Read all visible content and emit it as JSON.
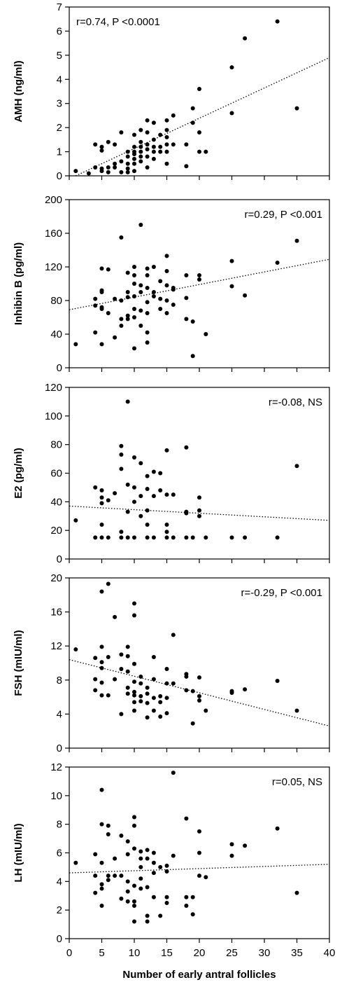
{
  "chart_data": [
    {
      "type": "scatter",
      "ylabel": "AMH (ng/ml)",
      "ylim": [
        0,
        7
      ],
      "yticks": [
        0,
        1,
        2,
        3,
        4,
        5,
        6,
        7
      ],
      "annotation": "r=0.74, P <0.0001",
      "annotation_position": "top-left",
      "trend": [
        [
          1,
          0
        ],
        [
          40,
          4.9
        ]
      ],
      "points": [
        [
          1,
          0.2
        ],
        [
          3,
          0.1
        ],
        [
          4,
          0.35
        ],
        [
          4,
          1.3
        ],
        [
          5,
          1.2
        ],
        [
          5,
          1.05
        ],
        [
          5,
          0.3
        ],
        [
          5,
          0.2
        ],
        [
          6,
          1.4
        ],
        [
          6,
          0.35
        ],
        [
          6,
          0.15
        ],
        [
          7,
          0.5
        ],
        [
          7,
          0.35
        ],
        [
          7,
          1.3
        ],
        [
          8,
          1.8
        ],
        [
          8,
          0.6
        ],
        [
          8,
          0.15
        ],
        [
          9,
          1.0
        ],
        [
          9,
          0.8
        ],
        [
          9,
          0.5
        ],
        [
          9,
          0.3
        ],
        [
          9,
          0.15
        ],
        [
          10,
          1.7
        ],
        [
          10,
          1.2
        ],
        [
          10,
          1.0
        ],
        [
          10,
          0.9
        ],
        [
          10,
          0.7
        ],
        [
          10,
          0.5
        ],
        [
          10,
          0.2
        ],
        [
          11,
          1.9
        ],
        [
          11,
          1.4
        ],
        [
          11,
          1.2
        ],
        [
          11,
          1.0
        ],
        [
          11,
          0.8
        ],
        [
          11,
          0.6
        ],
        [
          12,
          2.3
        ],
        [
          12,
          1.8
        ],
        [
          12,
          1.3
        ],
        [
          12,
          1.1
        ],
        [
          12,
          0.8
        ],
        [
          12,
          0.35
        ],
        [
          13,
          2.2
        ],
        [
          13,
          1.5
        ],
        [
          13,
          1.2
        ],
        [
          13,
          1.0
        ],
        [
          13,
          0.7
        ],
        [
          14,
          1.7
        ],
        [
          14,
          1.2
        ],
        [
          14,
          1.0
        ],
        [
          15,
          2.3
        ],
        [
          15,
          1.9
        ],
        [
          15,
          1.6
        ],
        [
          15,
          1.3
        ],
        [
          15,
          1.0
        ],
        [
          15,
          0.5
        ],
        [
          16,
          2.5
        ],
        [
          16,
          1.3
        ],
        [
          18,
          1.3
        ],
        [
          18,
          0.4
        ],
        [
          19,
          2.8
        ],
        [
          19,
          2.2
        ],
        [
          20,
          3.6
        ],
        [
          20,
          1.8
        ],
        [
          20,
          1.0
        ],
        [
          21,
          1.0
        ],
        [
          25,
          4.5
        ],
        [
          25,
          2.6
        ],
        [
          27,
          5.7
        ],
        [
          32,
          6.4
        ],
        [
          35,
          2.8
        ]
      ]
    },
    {
      "type": "scatter",
      "ylabel": "Inhibin B (pg/ml)",
      "ylim": [
        0,
        200
      ],
      "yticks": [
        0,
        40,
        80,
        120,
        160,
        200
      ],
      "annotation": "r=0.29, P <0.001",
      "annotation_position": "top-right",
      "trend": [
        [
          0,
          69
        ],
        [
          40,
          129
        ]
      ],
      "points": [
        [
          1,
          28
        ],
        [
          4,
          74
        ],
        [
          4,
          82
        ],
        [
          4,
          42
        ],
        [
          5,
          118
        ],
        [
          5,
          92
        ],
        [
          5,
          90
        ],
        [
          5,
          72
        ],
        [
          5,
          70
        ],
        [
          5,
          28
        ],
        [
          6,
          117
        ],
        [
          6,
          65
        ],
        [
          7,
          82
        ],
        [
          7,
          36
        ],
        [
          8,
          155
        ],
        [
          8,
          58
        ],
        [
          8,
          50
        ],
        [
          8,
          80
        ],
        [
          9,
          113
        ],
        [
          9,
          90
        ],
        [
          9,
          84
        ],
        [
          9,
          62
        ],
        [
          9,
          58
        ],
        [
          10,
          120
        ],
        [
          10,
          110
        ],
        [
          10,
          100
        ],
        [
          10,
          85
        ],
        [
          10,
          70
        ],
        [
          10,
          60
        ],
        [
          10,
          23
        ],
        [
          11,
          170
        ],
        [
          11,
          98
        ],
        [
          11,
          90
        ],
        [
          11,
          68
        ],
        [
          11,
          50
        ],
        [
          12,
          118
        ],
        [
          12,
          110
        ],
        [
          12,
          95
        ],
        [
          12,
          78
        ],
        [
          12,
          65
        ],
        [
          12,
          42
        ],
        [
          12,
          30
        ],
        [
          13,
          120
        ],
        [
          13,
          90
        ],
        [
          13,
          85
        ],
        [
          14,
          103
        ],
        [
          14,
          70
        ],
        [
          14,
          82
        ],
        [
          15,
          133
        ],
        [
          15,
          115
        ],
        [
          15,
          98
        ],
        [
          15,
          80
        ],
        [
          15,
          65
        ],
        [
          16,
          95
        ],
        [
          16,
          75
        ],
        [
          16,
          93
        ],
        [
          18,
          110
        ],
        [
          18,
          83
        ],
        [
          18,
          58
        ],
        [
          19,
          55
        ],
        [
          19,
          14
        ],
        [
          20,
          110
        ],
        [
          20,
          105
        ],
        [
          21,
          40
        ],
        [
          25,
          127
        ],
        [
          25,
          97
        ],
        [
          27,
          86
        ],
        [
          32,
          125
        ],
        [
          35,
          151
        ]
      ]
    },
    {
      "type": "scatter",
      "ylabel": "E2 (pg/ml)",
      "ylim": [
        0,
        120
      ],
      "yticks": [
        0,
        20,
        40,
        60,
        80,
        100,
        120
      ],
      "annotation": "r=-0.08, NS",
      "annotation_position": "top-right",
      "trend": [
        [
          0,
          37
        ],
        [
          40,
          27
        ]
      ],
      "points": [
        [
          1,
          27
        ],
        [
          4,
          50
        ],
        [
          4,
          15
        ],
        [
          5,
          48
        ],
        [
          5,
          43
        ],
        [
          5,
          39
        ],
        [
          5,
          24
        ],
        [
          5,
          15
        ],
        [
          6,
          41
        ],
        [
          6,
          15
        ],
        [
          7,
          46
        ],
        [
          8,
          79
        ],
        [
          8,
          73
        ],
        [
          8,
          63
        ],
        [
          8,
          19
        ],
        [
          8,
          15
        ],
        [
          9,
          110
        ],
        [
          9,
          52
        ],
        [
          9,
          33
        ],
        [
          9,
          15
        ],
        [
          10,
          71
        ],
        [
          10,
          50
        ],
        [
          10,
          40
        ],
        [
          10,
          15
        ],
        [
          11,
          67
        ],
        [
          11,
          44
        ],
        [
          11,
          30
        ],
        [
          12,
          58
        ],
        [
          12,
          49
        ],
        [
          12,
          34
        ],
        [
          12,
          24
        ],
        [
          12,
          15
        ],
        [
          13,
          61
        ],
        [
          13,
          44
        ],
        [
          13,
          15
        ],
        [
          14,
          60
        ],
        [
          14,
          48
        ],
        [
          15,
          76
        ],
        [
          15,
          45
        ],
        [
          15,
          24
        ],
        [
          15,
          19
        ],
        [
          15,
          15
        ],
        [
          16,
          45
        ],
        [
          16,
          15
        ],
        [
          18,
          78
        ],
        [
          18,
          33
        ],
        [
          18,
          32
        ],
        [
          18,
          15
        ],
        [
          19,
          15
        ],
        [
          20,
          43
        ],
        [
          20,
          34
        ],
        [
          20,
          30
        ],
        [
          21,
          15
        ],
        [
          25,
          15
        ],
        [
          27,
          15
        ],
        [
          32,
          15
        ],
        [
          35,
          65
        ]
      ]
    },
    {
      "type": "scatter",
      "ylabel": "FSH (mIU/ml)",
      "ylim": [
        0,
        20
      ],
      "yticks": [
        0,
        4,
        8,
        12,
        16,
        20
      ],
      "annotation": "r=-0.29, P <0.001",
      "annotation_position": "top-right",
      "trend": [
        [
          0,
          10.4
        ],
        [
          40,
          2.6
        ]
      ],
      "points": [
        [
          1,
          11.6
        ],
        [
          4,
          10.6
        ],
        [
          4,
          8.1
        ],
        [
          4,
          6.8
        ],
        [
          5,
          18.4
        ],
        [
          5,
          11.9
        ],
        [
          5,
          10.1
        ],
        [
          5,
          9.4
        ],
        [
          5,
          7.7
        ],
        [
          5,
          6.2
        ],
        [
          6,
          19.3
        ],
        [
          6,
          10.7
        ],
        [
          6,
          6.2
        ],
        [
          7,
          15.4
        ],
        [
          7,
          8.1
        ],
        [
          8,
          11.0
        ],
        [
          8,
          9.3
        ],
        [
          8,
          4.0
        ],
        [
          9,
          11.9
        ],
        [
          9,
          10.8
        ],
        [
          9,
          9.0
        ],
        [
          9,
          7.1
        ],
        [
          9,
          6.4
        ],
        [
          10,
          17.0
        ],
        [
          10,
          15.6
        ],
        [
          10,
          9.9
        ],
        [
          10,
          7.8
        ],
        [
          10,
          6.6
        ],
        [
          10,
          6.2
        ],
        [
          10,
          5.4
        ],
        [
          10,
          4.4
        ],
        [
          11,
          8.4
        ],
        [
          11,
          7.6
        ],
        [
          11,
          6.1
        ],
        [
          11,
          5.5
        ],
        [
          12,
          7.1
        ],
        [
          12,
          6.4
        ],
        [
          12,
          5.3
        ],
        [
          12,
          3.6
        ],
        [
          13,
          10.7
        ],
        [
          13,
          8.1
        ],
        [
          13,
          5.9
        ],
        [
          13,
          4.4
        ],
        [
          14,
          6.1
        ],
        [
          14,
          5.4
        ],
        [
          14,
          3.7
        ],
        [
          15,
          9.3
        ],
        [
          15,
          7.6
        ],
        [
          15,
          5.9
        ],
        [
          15,
          4.1
        ],
        [
          16,
          13.3
        ],
        [
          16,
          7.6
        ],
        [
          18,
          8.7
        ],
        [
          18,
          8.4
        ],
        [
          18,
          6.8
        ],
        [
          19,
          6.7
        ],
        [
          19,
          2.9
        ],
        [
          20,
          8.3
        ],
        [
          20,
          6.1
        ],
        [
          20,
          5.6
        ],
        [
          21,
          4.4
        ],
        [
          25,
          6.7
        ],
        [
          25,
          6.5
        ],
        [
          27,
          6.9
        ],
        [
          32,
          7.9
        ],
        [
          35,
          4.4
        ]
      ]
    },
    {
      "type": "scatter",
      "ylabel": "LH (mIU/ml)",
      "ylim": [
        0,
        12
      ],
      "yticks": [
        0,
        2,
        4,
        6,
        8,
        10,
        12
      ],
      "annotation": "r=0.05, NS",
      "annotation_position": "top-right",
      "trend": [
        [
          0,
          4.6
        ],
        [
          40,
          5.2
        ]
      ],
      "points": [
        [
          1,
          5.3
        ],
        [
          4,
          5.9
        ],
        [
          4,
          4.4
        ],
        [
          4,
          3.2
        ],
        [
          5,
          10.4
        ],
        [
          5,
          8.0
        ],
        [
          5,
          5.3
        ],
        [
          5,
          3.8
        ],
        [
          5,
          3.5
        ],
        [
          5,
          2.3
        ],
        [
          6,
          7.9
        ],
        [
          6,
          7.3
        ],
        [
          6,
          4.4
        ],
        [
          6,
          4.1
        ],
        [
          7,
          5.6
        ],
        [
          7,
          4.4
        ],
        [
          8,
          7.2
        ],
        [
          8,
          4.4
        ],
        [
          8,
          2.8
        ],
        [
          9,
          6.8
        ],
        [
          9,
          5.9
        ],
        [
          9,
          4.0
        ],
        [
          9,
          3.3
        ],
        [
          9,
          2.6
        ],
        [
          10,
          8.5
        ],
        [
          10,
          7.9
        ],
        [
          10,
          6.3
        ],
        [
          10,
          3.7
        ],
        [
          10,
          2.6
        ],
        [
          10,
          2.3
        ],
        [
          10,
          1.2
        ],
        [
          11,
          6.1
        ],
        [
          11,
          5.6
        ],
        [
          11,
          5.0
        ],
        [
          11,
          4.2
        ],
        [
          11,
          3.5
        ],
        [
          12,
          6.2
        ],
        [
          12,
          5.6
        ],
        [
          12,
          3.6
        ],
        [
          12,
          1.6
        ],
        [
          12,
          1.2
        ],
        [
          13,
          6.0
        ],
        [
          13,
          5.3
        ],
        [
          13,
          4.6
        ],
        [
          13,
          2.9
        ],
        [
          14,
          5.0
        ],
        [
          14,
          1.6
        ],
        [
          15,
          5.1
        ],
        [
          15,
          4.7
        ],
        [
          15,
          2.9
        ],
        [
          15,
          2.5
        ],
        [
          16,
          11.6
        ],
        [
          16,
          5.8
        ],
        [
          18,
          8.4
        ],
        [
          18,
          2.9
        ],
        [
          18,
          2.3
        ],
        [
          19,
          2.9
        ],
        [
          19,
          1.7
        ],
        [
          20,
          7.5
        ],
        [
          20,
          6.0
        ],
        [
          20,
          4.4
        ],
        [
          21,
          4.3
        ],
        [
          25,
          6.6
        ],
        [
          25,
          5.8
        ],
        [
          27,
          6.5
        ],
        [
          32,
          7.7
        ],
        [
          35,
          3.2
        ]
      ]
    }
  ],
  "x_axis": {
    "xlabel": "Number of early antral follicles",
    "xlim": [
      0,
      40
    ],
    "xticks": [
      0,
      5,
      10,
      15,
      20,
      25,
      30,
      35,
      40
    ]
  }
}
